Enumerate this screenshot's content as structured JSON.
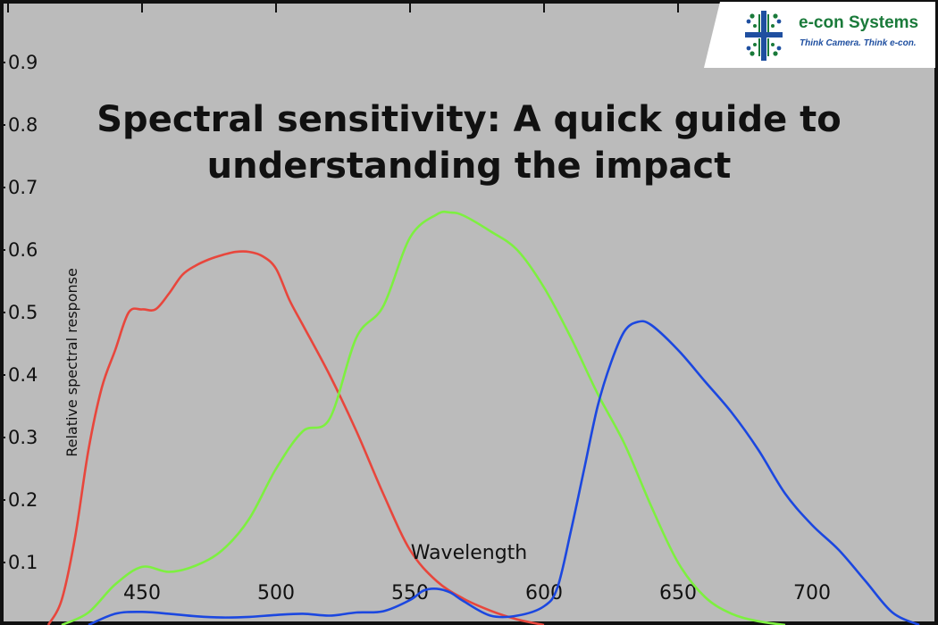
{
  "headline": {
    "bold": "Spectral sensitivity:",
    "rest": " A quick guide to understanding the impact"
  },
  "brand": {
    "name": "e-con Systems",
    "tagline": "Think Camera. Think e-con.",
    "colors": {
      "green": "#1a7a3a",
      "blue": "#1f4fa0"
    },
    "icon": "e-con-logo-icon"
  },
  "chart_data": {
    "type": "line",
    "xlabel": "Wavelength",
    "ylabel": "Relative spectral response",
    "xlim": [
      397,
      747
    ],
    "ylim": [
      0,
      1.0
    ],
    "x_ticks": [
      450,
      500,
      550,
      600,
      650,
      700
    ],
    "y_ticks": [
      0.1,
      0.2,
      0.3,
      0.4,
      0.5,
      0.6,
      0.7,
      0.8,
      0.9
    ],
    "grid": false,
    "legend": "none",
    "background": "#bbbbbb",
    "series": [
      {
        "color": "#e8463c",
        "x": [
          415,
          420,
          425,
          430,
          435,
          440,
          445,
          450,
          455,
          460,
          465,
          470,
          475,
          480,
          485,
          490,
          495,
          500,
          505,
          510,
          520,
          530,
          540,
          550,
          560,
          570,
          580,
          590,
          600
        ],
        "y": [
          0.0,
          0.04,
          0.14,
          0.28,
          0.38,
          0.44,
          0.5,
          0.505,
          0.505,
          0.53,
          0.56,
          0.575,
          0.585,
          0.592,
          0.597,
          0.597,
          0.59,
          0.57,
          0.52,
          0.48,
          0.4,
          0.31,
          0.21,
          0.12,
          0.07,
          0.042,
          0.023,
          0.009,
          0.0
        ]
      },
      {
        "color": "#7df040",
        "x": [
          420,
          430,
          440,
          450,
          460,
          470,
          480,
          490,
          500,
          510,
          520,
          530,
          540,
          550,
          560,
          565,
          570,
          580,
          590,
          600,
          610,
          620,
          630,
          640,
          650,
          660,
          670,
          680,
          690
        ],
        "y": [
          0.0,
          0.02,
          0.065,
          0.093,
          0.085,
          0.095,
          0.12,
          0.17,
          0.25,
          0.31,
          0.33,
          0.46,
          0.51,
          0.62,
          0.657,
          0.66,
          0.655,
          0.63,
          0.6,
          0.54,
          0.46,
          0.37,
          0.29,
          0.19,
          0.1,
          0.045,
          0.018,
          0.006,
          0.0
        ]
      },
      {
        "color": "#1b47e0",
        "x": [
          430,
          440,
          450,
          460,
          470,
          480,
          490,
          500,
          510,
          520,
          530,
          540,
          550,
          555,
          560,
          565,
          570,
          580,
          590,
          600,
          605,
          610,
          615,
          620,
          625,
          630,
          635,
          640,
          650,
          660,
          670,
          680,
          690,
          700,
          710,
          720,
          730,
          740
        ],
        "y": [
          0.0,
          0.018,
          0.021,
          0.018,
          0.014,
          0.012,
          0.013,
          0.016,
          0.018,
          0.015,
          0.02,
          0.022,
          0.04,
          0.055,
          0.058,
          0.052,
          0.038,
          0.015,
          0.015,
          0.03,
          0.06,
          0.15,
          0.25,
          0.35,
          0.42,
          0.47,
          0.485,
          0.48,
          0.44,
          0.39,
          0.34,
          0.28,
          0.21,
          0.16,
          0.12,
          0.07,
          0.02,
          0.0
        ]
      }
    ]
  }
}
